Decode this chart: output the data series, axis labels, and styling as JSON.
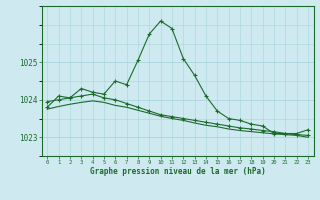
{
  "title": "Graphe pression niveau de la mer (hPa)",
  "bg_color": "#ceeaf0",
  "grid_color": "#aad4dc",
  "line_color": "#1a6b2a",
  "xlim": [
    -0.5,
    23.5
  ],
  "ylim": [
    1022.5,
    1026.5
  ],
  "yticks": [
    1023,
    1024,
    1025
  ],
  "x_labels": [
    "0",
    "1",
    "2",
    "3",
    "4",
    "5",
    "6",
    "7",
    "8",
    "9",
    "10",
    "11",
    "12",
    "13",
    "14",
    "15",
    "16",
    "17",
    "18",
    "19",
    "20",
    "21",
    "22",
    "23"
  ],
  "series1": [
    1023.8,
    1024.1,
    1024.05,
    1024.3,
    1024.2,
    1024.15,
    1024.5,
    1024.4,
    1025.05,
    1025.75,
    1026.1,
    1025.9,
    1025.1,
    1024.65,
    1024.1,
    1023.7,
    1023.5,
    1023.45,
    1023.35,
    1023.3,
    1023.1,
    1023.1,
    1023.1,
    1023.2
  ],
  "series2": [
    1023.95,
    1024.0,
    1024.05,
    1024.1,
    1024.15,
    1024.05,
    1024.0,
    1023.9,
    1023.8,
    1023.7,
    1023.6,
    1023.55,
    1023.5,
    1023.45,
    1023.4,
    1023.35,
    1023.3,
    1023.25,
    1023.22,
    1023.18,
    1023.15,
    1023.1,
    1023.07,
    1023.05
  ],
  "series3": [
    1023.75,
    1023.82,
    1023.88,
    1023.93,
    1023.97,
    1023.93,
    1023.85,
    1023.8,
    1023.72,
    1023.64,
    1023.56,
    1023.5,
    1023.45,
    1023.38,
    1023.32,
    1023.28,
    1023.22,
    1023.18,
    1023.15,
    1023.12,
    1023.09,
    1023.07,
    1023.05,
    1023.0
  ]
}
